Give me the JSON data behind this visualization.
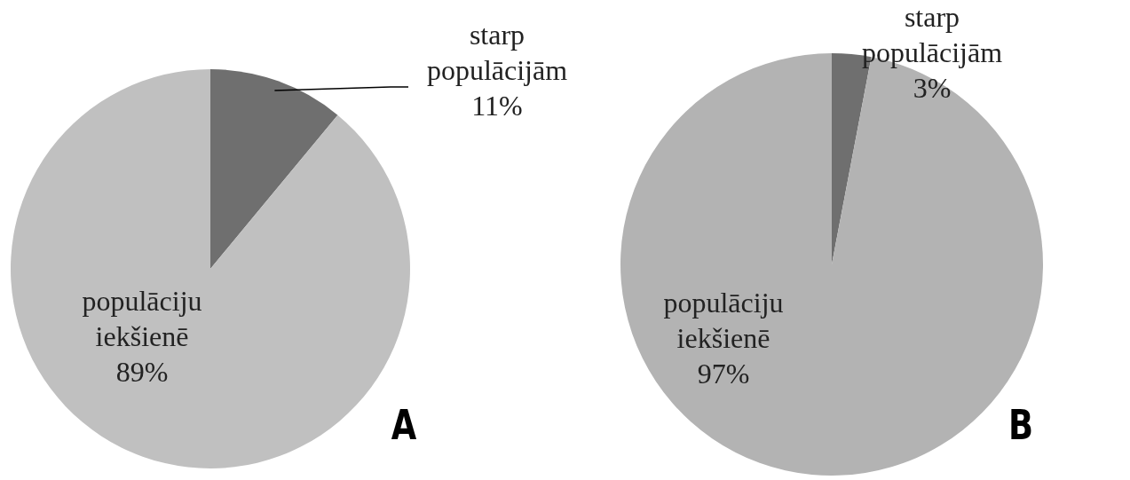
{
  "chart_data": [
    {
      "type": "pie",
      "categories": [
        "starp populācijām",
        "populāciju iekšienē"
      ],
      "values": [
        11,
        89
      ],
      "colors": [
        "#6f6f6f",
        "#c0c0c0"
      ],
      "value_labels": [
        "11%",
        "89%"
      ],
      "annotations": [
        "A"
      ]
    },
    {
      "type": "pie",
      "categories": [
        "starp populācijām",
        "populāciju iekšienē"
      ],
      "values": [
        3,
        97
      ],
      "colors": [
        "#6f6f6f",
        "#b3b3b3"
      ],
      "value_labels": [
        "3%",
        "97%"
      ],
      "annotations": [
        "B"
      ]
    }
  ]
}
